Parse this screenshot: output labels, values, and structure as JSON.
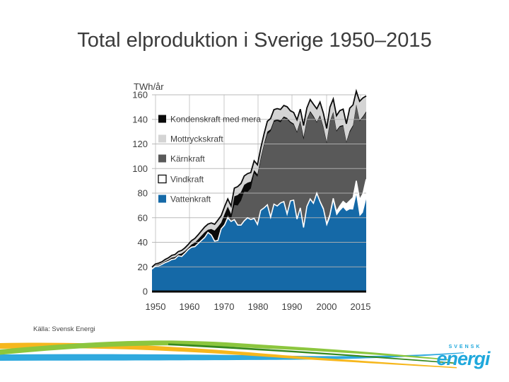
{
  "slide": {
    "title": "Total elproduktion i Sverige 1950–2015",
    "source": "Källa: Svensk Energi"
  },
  "logo": {
    "top": "SVENSK",
    "main": "energi",
    "color": "#1FA8DC"
  },
  "footer": {
    "colors": {
      "yellow": "#F6B71D",
      "green": "#8CC63E",
      "dark_green": "#35871E",
      "blue": "#2FA9DE"
    }
  },
  "chart_data": {
    "type": "area",
    "stacked": true,
    "title": "",
    "xlabel": "",
    "ylabel": "TWh/år",
    "year_start": 1950,
    "year_end": 2015,
    "xtick_labels": [
      "1950",
      "1960",
      "1970",
      "1980",
      "1990",
      "2000",
      "2015"
    ],
    "yticks": [
      0,
      20,
      40,
      60,
      80,
      100,
      120,
      140,
      160
    ],
    "ylim": [
      0,
      160
    ],
    "grid": true,
    "legend_position": "top-left-inside",
    "stack_order": "bottom-to-top",
    "legend": [
      {
        "label": "Kondenskraft med mera",
        "color": "#0A0A0A"
      },
      {
        "label": "Mottryckskraft",
        "color": "#D4D4D4"
      },
      {
        "label": "Kärnkraft",
        "color": "#595959"
      },
      {
        "label": "Vindkraft",
        "color": "#FFFFFF",
        "border": "#0A0A0A"
      },
      {
        "label": "Vattenkraft",
        "color": "#1569A7"
      }
    ],
    "series": [
      {
        "name": "Vattenkraft",
        "color": "#1569A7",
        "values": [
          18.2,
          20.5,
          20.8,
          22,
          23.5,
          24.5,
          26,
          26.5,
          29,
          28.5,
          31,
          34,
          36,
          36.5,
          39,
          41.5,
          44,
          48,
          46,
          41,
          41.5,
          51,
          54,
          60,
          57,
          58.5,
          54,
          54,
          57.5,
          60,
          58.5,
          59.5,
          54.5,
          66,
          68,
          70.5,
          60.5,
          71,
          69.5,
          72,
          73,
          63,
          73.5,
          74,
          58.5,
          67.5,
          51.5,
          68.5,
          74.5,
          70.9,
          79,
          72,
          66,
          53,
          60,
          72.9,
          61.7,
          65.5,
          68.4,
          65.3,
          66.8,
          66.6,
          78.5,
          61.2,
          64.2,
          75
        ]
      },
      {
        "name": "Vindkraft",
        "color": "#FFFFFF",
        "values": [
          0,
          0,
          0,
          0,
          0,
          0,
          0,
          0,
          0,
          0,
          0,
          0,
          0,
          0,
          0,
          0,
          0,
          0,
          0,
          0,
          0,
          0,
          0,
          0,
          0,
          0,
          0,
          0,
          0,
          0,
          0,
          0,
          0,
          0,
          0,
          0,
          0,
          0,
          0,
          0,
          0.1,
          0.1,
          0.2,
          0.3,
          0.4,
          0.5,
          0.6,
          0.7,
          0.8,
          0.9,
          1.0,
          1.2,
          1.5,
          1.9,
          2.5,
          2.9,
          3.4,
          4.0,
          4.8,
          5.8,
          7.0,
          9.8,
          11.6,
          13.6,
          15.2,
          16.3
        ]
      },
      {
        "name": "Kärnkraft",
        "color": "#595959",
        "values": [
          0,
          0,
          0,
          0,
          0,
          0,
          0,
          0,
          0,
          0,
          0,
          0,
          0,
          0,
          0,
          0,
          0,
          0,
          0,
          0,
          0,
          0,
          1.4,
          2.0,
          2.0,
          11.9,
          15.9,
          19.9,
          23.8,
          21.0,
          25.3,
          36.7,
          38.8,
          41.1,
          50.9,
          57.5,
          69.9,
          67.0,
          69.4,
          65.6,
          68.2,
          76.8,
          63.5,
          61.4,
          70.2,
          69.9,
          71.4,
          69.9,
          70.5,
          70.1,
          57.3,
          69.2,
          65.6,
          65.5,
          75.0,
          69.5,
          65.0,
          64.3,
          61.3,
          50.0,
          55.6,
          58.0,
          61.2,
          63.6,
          62.2,
          54.3
        ]
      },
      {
        "name": "Kondenskraft med mera",
        "color": "#0A0A0A",
        "values": [
          0.6,
          0.7,
          1.0,
          0.8,
          1.0,
          1.2,
          1.5,
          1.5,
          1.2,
          2.4,
          1.8,
          1.4,
          2.2,
          3.2,
          3.4,
          3.8,
          4.2,
          2.2,
          4.8,
          8.5,
          11,
          5,
          7.5,
          7,
          4,
          7,
          8.5,
          7,
          5.5,
          7.5,
          5.5,
          2.5,
          2,
          1.5,
          1.2,
          2,
          1.5,
          1.2,
          1,
          1.5,
          1,
          1.2,
          1,
          0.9,
          1,
          1.1,
          2,
          1,
          0.9,
          0.9,
          0.8,
          0.9,
          1,
          1.2,
          0.9,
          0.8,
          0.9,
          0.8,
          0.8,
          0.8,
          1.2,
          0.9,
          0.7,
          0.8,
          0.8,
          0.9
        ]
      },
      {
        "name": "Mottryckskraft",
        "color": "#D4D4D4",
        "values": [
          1.0,
          1.1,
          1.2,
          1.3,
          1.5,
          1.7,
          1.9,
          2.1,
          2.3,
          2.5,
          2.7,
          2.9,
          3.1,
          3.4,
          3.7,
          4.0,
          4.3,
          4.6,
          4.9,
          5.2,
          5.5,
          5.7,
          6.0,
          6.3,
          6.5,
          6.7,
          6.9,
          7.0,
          7.2,
          7.4,
          7.5,
          7.6,
          7.7,
          7.9,
          8.1,
          8.5,
          8.8,
          8.7,
          8.9,
          9.0,
          9.0,
          9.2,
          8.8,
          9.0,
          9.5,
          9.3,
          9.5,
          9.2,
          9.4,
          9.5,
          10.5,
          10.8,
          11.0,
          11.0,
          11.5,
          10.5,
          12.0,
          12.5,
          13.0,
          14.5,
          18.5,
          16.5,
          11.0,
          15.5,
          15.0,
          12.5
        ]
      }
    ]
  }
}
